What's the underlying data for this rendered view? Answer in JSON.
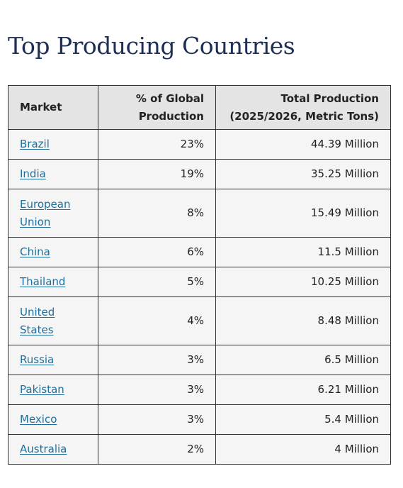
{
  "page": {
    "title": "Top Producing Countries"
  },
  "table": {
    "headers": {
      "market": "Market",
      "share_line1": "% of Global",
      "share_line2": "Production",
      "total_line1": "Total Production",
      "total_line2": "(2025/2026, Metric Tons)"
    },
    "rows": [
      {
        "market": "Brazil",
        "share": "23%",
        "total": "44.39 Million"
      },
      {
        "market": "India",
        "share": "19%",
        "total": "35.25 Million"
      },
      {
        "market": "European Union",
        "share": "8%",
        "total": "15.49 Million"
      },
      {
        "market": "China",
        "share": "6%",
        "total": "11.5 Million"
      },
      {
        "market": "Thailand",
        "share": "5%",
        "total": "10.25 Million"
      },
      {
        "market": "United States",
        "share": "4%",
        "total": "8.48 Million"
      },
      {
        "market": "Russia",
        "share": "3%",
        "total": "6.5 Million"
      },
      {
        "market": "Pakistan",
        "share": "3%",
        "total": "6.21 Million"
      },
      {
        "market": "Mexico",
        "share": "3%",
        "total": "5.4 Million"
      },
      {
        "market": "Australia",
        "share": "2%",
        "total": "4 Million"
      }
    ]
  }
}
